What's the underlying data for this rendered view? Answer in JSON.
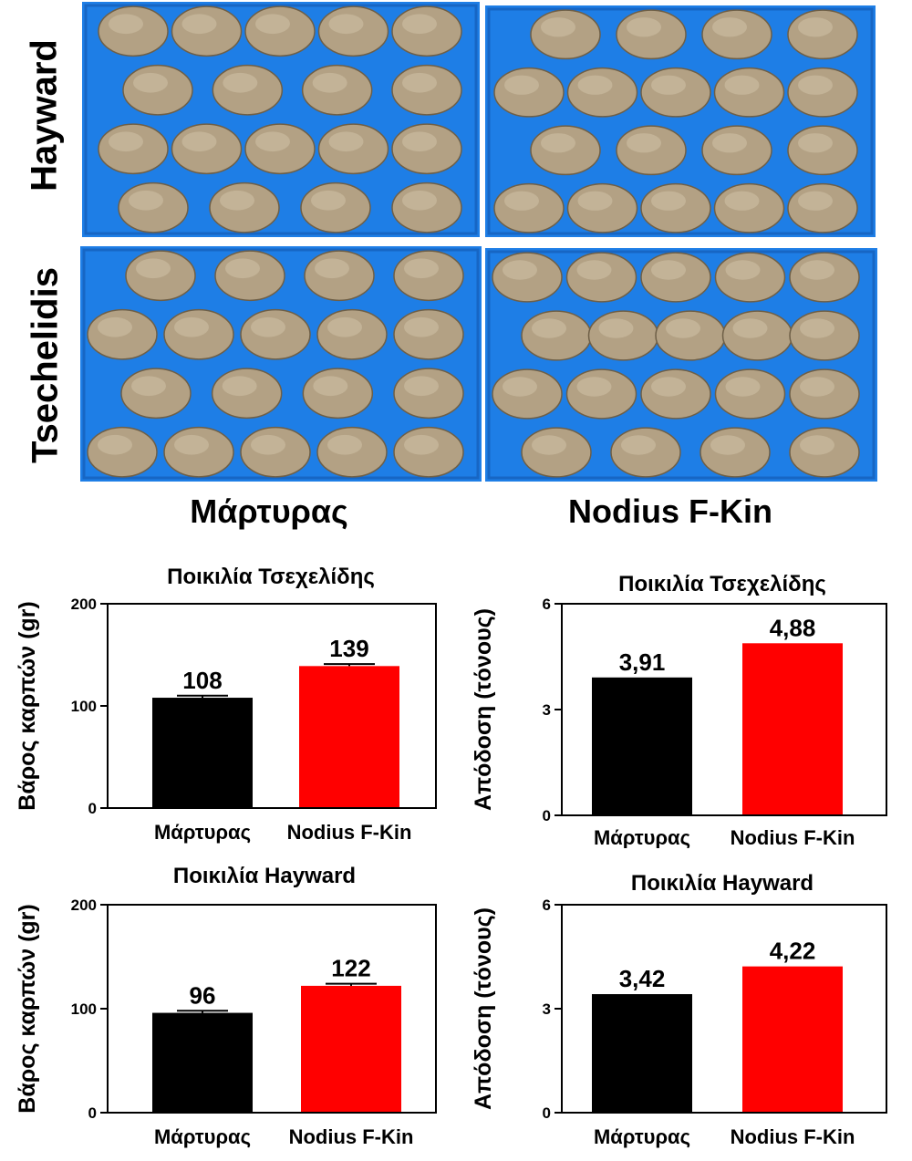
{
  "photos": {
    "row_labels": [
      "Hayward",
      "Tsechelidis"
    ],
    "column_labels": [
      "Μάρτυρας",
      "Nodius F-Kin"
    ],
    "tray_color": "#1e7ee6",
    "fruit_color": "#b3a184"
  },
  "chart_data": [
    {
      "type": "bar",
      "title": "Ποικιλία Τσεχελίδης",
      "ylabel": "Βάρος καρπών (gr)",
      "xlabel": "",
      "categories": [
        "Μάρτυρας",
        "Nodius F-Kin"
      ],
      "values": [
        108,
        139
      ],
      "value_labels": [
        "108",
        "139"
      ],
      "errors": [
        2,
        2
      ],
      "ylim": [
        0,
        200
      ],
      "yticks": [
        "0",
        "100",
        "200"
      ],
      "colors": [
        "#000000",
        "#ff0000"
      ]
    },
    {
      "type": "bar",
      "title": "Ποικιλία Τσεχελίδης",
      "ylabel": "Απόδοση (τόνους)",
      "xlabel": "",
      "categories": [
        "Μάρτυρας",
        "Nodius F-Kin"
      ],
      "values": [
        3.91,
        4.88
      ],
      "value_labels": [
        "3,91",
        "4,88"
      ],
      "errors": [
        0,
        0
      ],
      "ylim": [
        0,
        6
      ],
      "yticks": [
        "0",
        "3",
        "6"
      ],
      "colors": [
        "#000000",
        "#ff0000"
      ]
    },
    {
      "type": "bar",
      "title": "Ποικιλία Hayward",
      "ylabel": "Βάρος καρπών (gr)",
      "xlabel": "",
      "categories": [
        "Μάρτυρας",
        "Nodius F-Kin"
      ],
      "values": [
        96,
        122
      ],
      "value_labels": [
        "96",
        "122"
      ],
      "errors": [
        2,
        2
      ],
      "ylim": [
        0,
        200
      ],
      "yticks": [
        "0",
        "100",
        "200"
      ],
      "colors": [
        "#000000",
        "#ff0000"
      ]
    },
    {
      "type": "bar",
      "title": "Ποικιλία Hayward",
      "ylabel": "Απόδοση (τόνους)",
      "xlabel": "",
      "categories": [
        "Μάρτυρας",
        "Nodius F-Kin"
      ],
      "values": [
        3.42,
        4.22
      ],
      "value_labels": [
        "3,42",
        "4,22"
      ],
      "errors": [
        0,
        0
      ],
      "ylim": [
        0,
        6
      ],
      "yticks": [
        "0",
        "3",
        "6"
      ],
      "colors": [
        "#000000",
        "#ff0000"
      ]
    }
  ]
}
